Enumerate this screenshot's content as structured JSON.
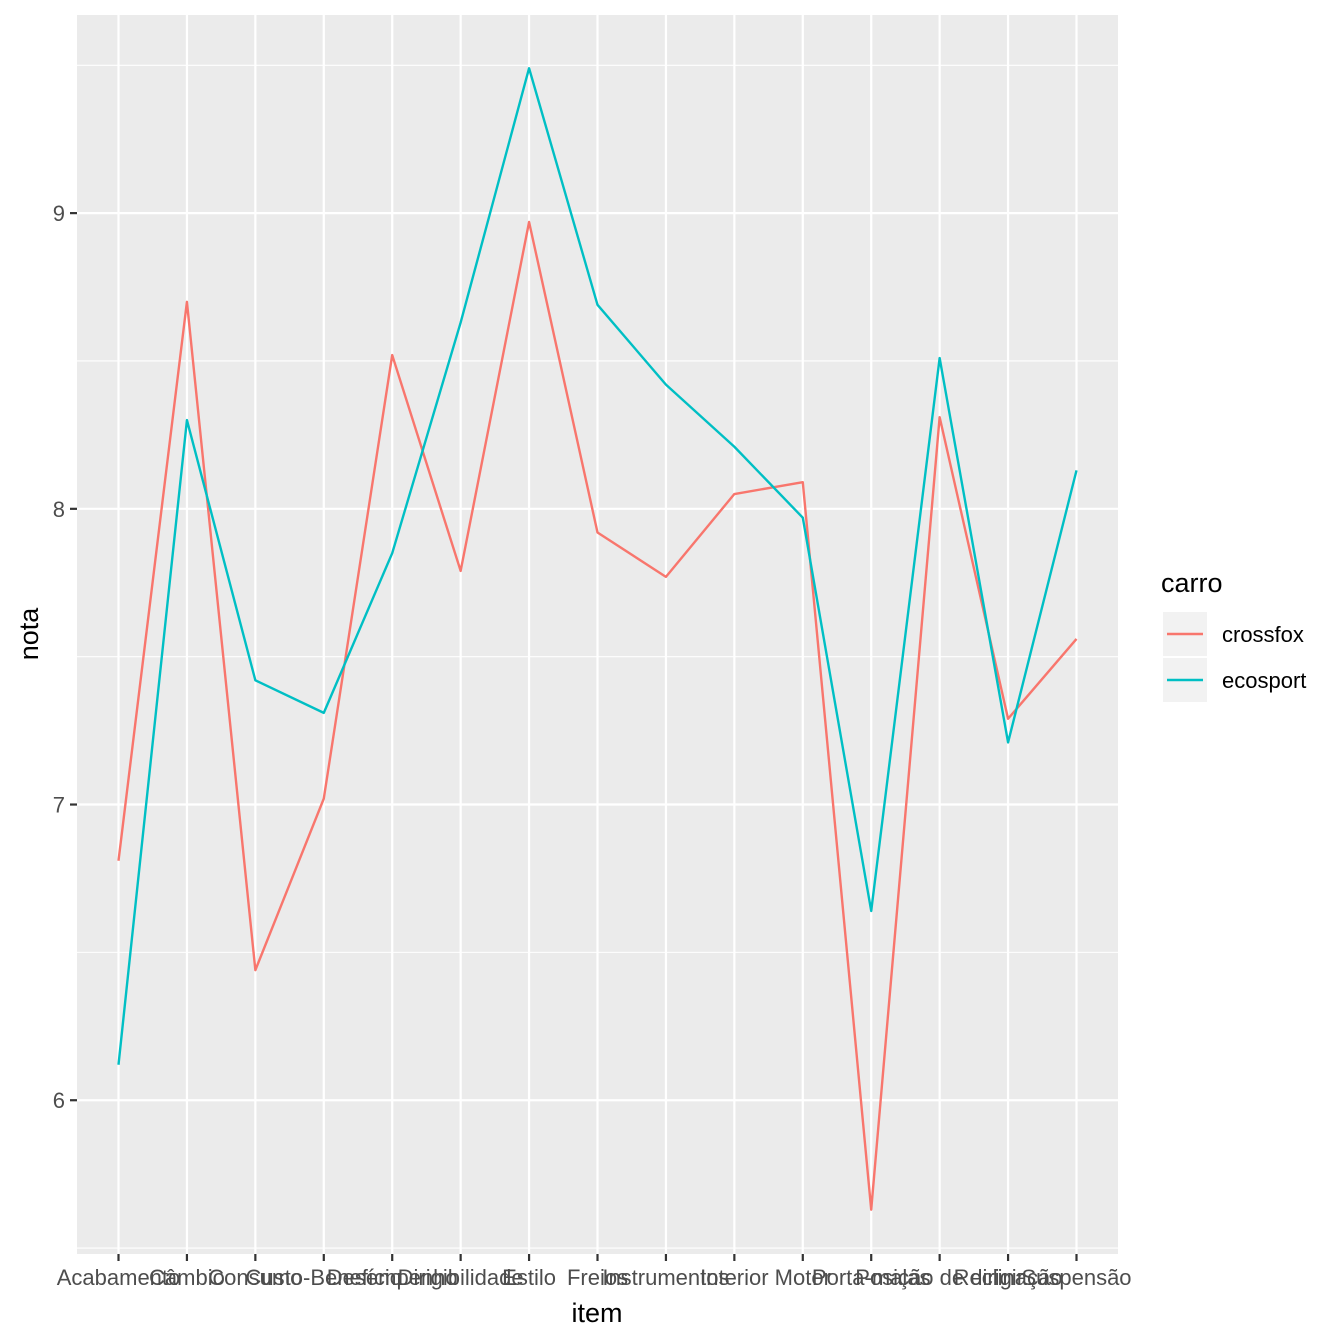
{
  "chart_data": {
    "type": "line",
    "xlabel": "item",
    "ylabel": "nota",
    "ylim": [
      5.48,
      9.67
    ],
    "yticks": [
      6,
      7,
      8,
      9
    ],
    "y_minor_ticks": [
      5.5,
      6.5,
      7.5,
      8.5,
      9.5
    ],
    "grid": true,
    "legend_title": "carro",
    "legend_position": "right",
    "categories": [
      "Acabamento",
      "Câmbio",
      "Consumo",
      "Custo-Benefício",
      "Desempenho",
      "Dirigibilidade",
      "Estilo",
      "Freios",
      "Instrumentos",
      "Interior",
      "Motor",
      "Porta-malas",
      "Posição de dirigir",
      "Reclinação",
      "Suspensão"
    ],
    "series": [
      {
        "name": "crossfox",
        "color": "#F8766D",
        "values": [
          6.81,
          8.7,
          6.44,
          7.02,
          8.52,
          7.79,
          8.97,
          7.92,
          7.77,
          8.05,
          8.09,
          5.63,
          8.31,
          7.29,
          7.56
        ]
      },
      {
        "name": "ecosport",
        "color": "#00BFC4",
        "values": [
          6.12,
          8.3,
          7.42,
          7.31,
          7.85,
          8.63,
          9.49,
          8.69,
          8.42,
          8.21,
          7.97,
          6.64,
          8.51,
          7.21,
          8.13
        ]
      }
    ]
  }
}
